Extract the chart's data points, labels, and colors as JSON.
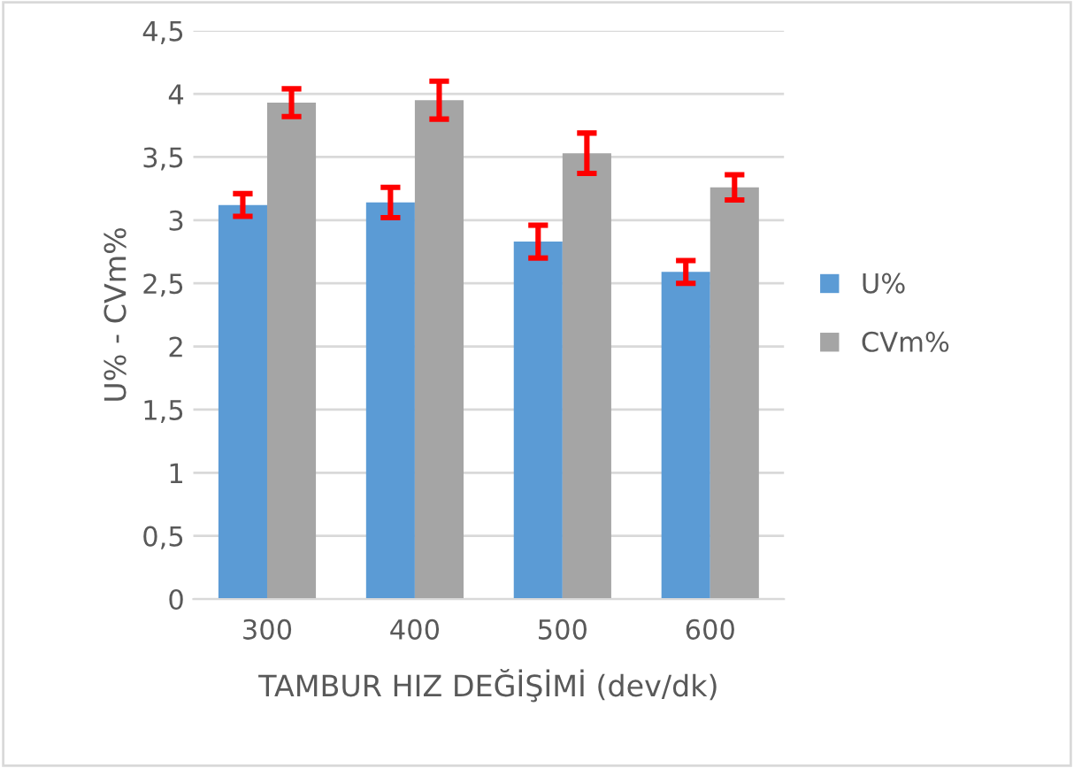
{
  "chart_data": {
    "type": "bar",
    "xlabel": "TAMBUR HIZ DEĞİŞİMİ (dev/dk)",
    "ylabel": "U% - CVm%",
    "categories": [
      "300",
      "400",
      "500",
      "600"
    ],
    "series": [
      {
        "name": "U%",
        "color": "#5b9bd5",
        "values": [
          3.12,
          3.14,
          2.83,
          2.59
        ],
        "errors": [
          0.09,
          0.12,
          0.13,
          0.09
        ]
      },
      {
        "name": "CVm%",
        "color": "#a5a5a5",
        "values": [
          3.93,
          3.95,
          3.53,
          3.26
        ],
        "errors": [
          0.11,
          0.15,
          0.16,
          0.1
        ]
      }
    ],
    "ylim": [
      0,
      4.5
    ],
    "yticks": [
      0,
      {
        "value": 0.5,
        "label": "0,5"
      },
      1,
      {
        "value": 1.5,
        "label": "1,5"
      },
      2,
      {
        "value": 2.5,
        "label": "2,5"
      },
      3,
      {
        "value": 3.5,
        "label": "3,5"
      },
      4,
      {
        "value": 4.5,
        "label": "4,5"
      }
    ],
    "grid": "y",
    "legend": "right"
  }
}
